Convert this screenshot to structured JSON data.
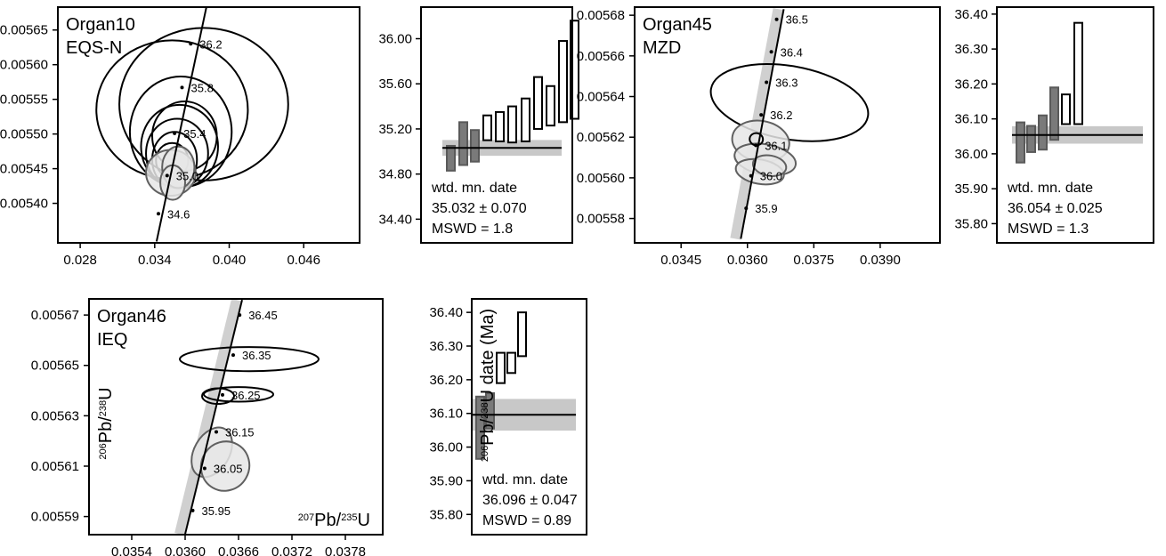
{
  "figure": {
    "axis_labels": {
      "x": "207Pb/235U",
      "y": "206Pb/238U",
      "date": "206Pb/238U date (Ma)"
    },
    "colors": {
      "ellipse_included_fill": "#e6e6e6",
      "ellipse_included_stroke": "#606060",
      "ellipse_excluded_stroke": "#000000",
      "bar_included_fill": "#7a7a7a",
      "bar_excluded_fill": "#ffffff",
      "mean_band": "#c8c8c8",
      "concordia": "#000000"
    }
  },
  "chart_data": [
    {
      "type": "scatter",
      "id": "organ10-concordia",
      "sample": "Organ10",
      "unit": "EQS-N",
      "xlim": [
        0.0262,
        0.0505
      ],
      "ylim": [
        0.005343,
        0.005683
      ],
      "xticks": [
        "0.028",
        "0.034",
        "0.040",
        "0.046"
      ],
      "yticks": [
        "0.00540",
        "0.00545",
        "0.00550",
        "0.00555",
        "0.00560",
        "0.00565"
      ],
      "concordia": {
        "segment": [
          [
            0.03415,
            0.005345
          ],
          [
            0.03815,
            0.005682
          ]
        ],
        "ages": [
          {
            "label": "34.6",
            "x": 0.0343,
            "y": 0.005385
          },
          {
            "label": "35.0",
            "x": 0.035,
            "y": 0.00544
          },
          {
            "label": "35.4",
            "x": 0.0356,
            "y": 0.005501
          },
          {
            "label": "35.8",
            "x": 0.0362,
            "y": 0.005567
          },
          {
            "label": "36.2",
            "x": 0.0369,
            "y": 0.00563
          }
        ]
      },
      "ellipses": [
        {
          "cx": 0.0354,
          "cy": 0.005535,
          "rx": 0.0061,
          "ry": 0.0001,
          "included": false
        },
        {
          "cx": 0.03795,
          "cy": 0.005543,
          "rx": 0.0068,
          "ry": 0.00011,
          "included": false
        },
        {
          "cx": 0.0361,
          "cy": 0.005503,
          "rx": 0.0041,
          "ry": 8e-05,
          "included": false
        },
        {
          "cx": 0.0364,
          "cy": 0.005497,
          "rx": 0.0026,
          "ry": 5e-05,
          "included": false
        },
        {
          "cx": 0.036,
          "cy": 0.005482,
          "rx": 0.0031,
          "ry": 6e-05,
          "included": false
        },
        {
          "cx": 0.0358,
          "cy": 0.005472,
          "rx": 0.0025,
          "ry": 5e-05,
          "included": false
        },
        {
          "cx": 0.0356,
          "cy": 0.005463,
          "rx": 0.0018,
          "ry": 4e-05,
          "included": false
        },
        {
          "cx": 0.0354,
          "cy": 0.005462,
          "rx": 0.0013,
          "ry": 2.5e-05,
          "included": false
        },
        {
          "cx": 0.0353,
          "cy": 0.005444,
          "rx": 0.002,
          "ry": 3.3e-05,
          "included": true
        },
        {
          "cx": 0.0359,
          "cy": 0.005452,
          "rx": 0.0013,
          "ry": 3e-05,
          "included": true
        },
        {
          "cx": 0.03545,
          "cy": 0.00543,
          "rx": 0.001,
          "ry": 2.5e-05,
          "included": true
        }
      ]
    },
    {
      "type": "bar",
      "id": "organ10-dates",
      "ylim": [
        34.19,
        36.28
      ],
      "yticks": [
        "34.40",
        "34.80",
        "35.20",
        "35.60",
        "36.00"
      ],
      "mean": 35.032,
      "mean_err": 0.07,
      "bars": [
        {
          "low": 34.83,
          "high": 35.05,
          "included": true
        },
        {
          "low": 34.88,
          "high": 35.26,
          "included": true
        },
        {
          "low": 34.91,
          "high": 35.19,
          "included": true
        },
        {
          "low": 35.1,
          "high": 35.32,
          "included": false
        },
        {
          "low": 35.09,
          "high": 35.35,
          "included": false
        },
        {
          "low": 35.08,
          "high": 35.4,
          "included": false
        },
        {
          "low": 35.09,
          "high": 35.47,
          "included": false
        },
        {
          "low": 35.2,
          "high": 35.66,
          "included": false
        },
        {
          "low": 35.23,
          "high": 35.58,
          "included": false
        },
        {
          "low": 35.26,
          "high": 35.98,
          "included": false
        },
        {
          "low": 35.29,
          "high": 36.16,
          "included": false
        }
      ],
      "label": "wtd. mn. date",
      "mean_text": "35.032 ± 0.070",
      "mswd_text": "MSWD = 1.8"
    },
    {
      "type": "scatter",
      "id": "organ45-concordia",
      "sample": "Organ45",
      "unit": "MZD",
      "xlim": [
        0.03345,
        0.04035
      ],
      "ylim": [
        0.005568,
        0.005684
      ],
      "xticks": [
        "0.0345",
        "0.0360",
        "0.0375",
        "0.0390"
      ],
      "yticks": [
        "0.00558",
        "0.00560",
        "0.00562",
        "0.00564",
        "0.00566",
        "0.00568"
      ],
      "concordia": {
        "segment": [
          [
            0.03585,
            0.00557
          ],
          [
            0.03682,
            0.005683
          ]
        ],
        "ages": [
          {
            "label": "35.9",
            "x": 0.03597,
            "y": 0.005585
          },
          {
            "label": "36.0",
            "x": 0.03608,
            "y": 0.005601
          },
          {
            "label": "36.1",
            "x": 0.03619,
            "y": 0.005616
          },
          {
            "label": "36.2",
            "x": 0.03631,
            "y": 0.005631
          },
          {
            "label": "36.3",
            "x": 0.03643,
            "y": 0.005647
          },
          {
            "label": "36.4",
            "x": 0.03654,
            "y": 0.005662
          },
          {
            "label": "36.5",
            "x": 0.03666,
            "y": 0.005678
          }
        ]
      },
      "ellipses": [
        {
          "cx": 0.03695,
          "cy": 0.005637,
          "rx": 0.0018,
          "ry": 1.8e-05,
          "included": false
        },
        {
          "cx": 0.0363,
          "cy": 0.005618,
          "rx": 0.00065,
          "ry": 1e-05,
          "included": true
        },
        {
          "cx": 0.0364,
          "cy": 0.005609,
          "rx": 0.0007,
          "ry": 7.5e-06,
          "included": true
        },
        {
          "cx": 0.03628,
          "cy": 0.005603,
          "rx": 0.00055,
          "ry": 6e-06,
          "included": true
        },
        {
          "cx": 0.0365,
          "cy": 0.005606,
          "rx": 0.00038,
          "ry": 5e-06,
          "included": true
        },
        {
          "cx": 0.0362,
          "cy": 0.005619,
          "rx": 0.00015,
          "ry": 3e-06,
          "included": false
        }
      ]
    },
    {
      "type": "bar",
      "id": "organ45-dates",
      "ylim": [
        35.745,
        36.42
      ],
      "yticks": [
        "35.80",
        "35.90",
        "36.00",
        "36.10",
        "36.20",
        "36.30",
        "36.40"
      ],
      "mean": 36.054,
      "mean_err": 0.025,
      "bars": [
        {
          "low": 35.975,
          "high": 36.09,
          "included": true
        },
        {
          "low": 36.005,
          "high": 36.08,
          "included": true
        },
        {
          "low": 36.012,
          "high": 36.11,
          "included": true
        },
        {
          "low": 36.04,
          "high": 36.19,
          "included": true
        },
        {
          "low": 36.085,
          "high": 36.17,
          "included": false
        },
        {
          "low": 36.085,
          "high": 36.375,
          "included": false
        }
      ],
      "label": "wtd. mn. date",
      "mean_text": "36.054 ± 0.025",
      "mswd_text": "MSWD = 1.3"
    },
    {
      "type": "scatter",
      "id": "organ46-concordia",
      "sample": "Organ46",
      "unit": "IEQ",
      "xlim": [
        0.03492,
        0.03822
      ],
      "ylim": [
        0.0055828,
        0.0056764
      ],
      "xticks": [
        "0.0354",
        "0.0360",
        "0.0366",
        "0.0372",
        "0.0378"
      ],
      "yticks": [
        "0.00559",
        "0.00561",
        "0.00563",
        "0.00565",
        "0.00567"
      ],
      "concordia": {
        "segment": [
          [
            0.036,
            0.005583
          ],
          [
            0.03664,
            0.005676
          ]
        ],
        "ages": [
          {
            "label": "35.95",
            "x": 0.036085,
            "y": 0.0055924
          },
          {
            "label": "36.05",
            "x": 0.036219,
            "y": 0.0056091
          },
          {
            "label": "36.15",
            "x": 0.03635,
            "y": 0.0056236
          },
          {
            "label": "36.25",
            "x": 0.03642,
            "y": 0.0056383
          },
          {
            "label": "36.35",
            "x": 0.03654,
            "y": 0.0056541
          },
          {
            "label": "36.45",
            "x": 0.036612,
            "y": 0.00567
          }
        ]
      },
      "ellipses": [
        {
          "cx": 0.03672,
          "cy": 0.0056525,
          "rx": 0.00078,
          "ry": 4.8e-06,
          "included": false
        },
        {
          "cx": 0.0366,
          "cy": 0.0056385,
          "rx": 0.00039,
          "ry": 2.9e-06,
          "included": false
        },
        {
          "cx": 0.03637,
          "cy": 0.0056378,
          "rx": 0.00018,
          "ry": 3.1e-06,
          "included": false
        },
        {
          "cx": 0.0363,
          "cy": 0.0056155,
          "rx": 0.0003,
          "ry": 7e-06,
          "included": true
        },
        {
          "cx": 0.03645,
          "cy": 0.00561,
          "rx": 0.00028,
          "ry": 9.5e-06,
          "included": true
        }
      ]
    },
    {
      "type": "bar",
      "id": "organ46-dates",
      "ylim": [
        35.74,
        36.44
      ],
      "yticks": [
        "35.80",
        "35.90",
        "36.00",
        "36.10",
        "36.20",
        "36.30",
        "36.40"
      ],
      "mean": 36.096,
      "mean_err": 0.047,
      "bars": [
        {
          "low": 35.965,
          "high": 36.15,
          "included": true
        },
        {
          "low": 36.055,
          "high": 36.16,
          "included": true
        },
        {
          "low": 36.19,
          "high": 36.28,
          "included": false
        },
        {
          "low": 36.22,
          "high": 36.28,
          "included": false
        },
        {
          "low": 36.27,
          "high": 36.4,
          "included": false
        }
      ],
      "label": "wtd. mn. date",
      "mean_text": "36.096 ± 0.047",
      "mswd_text": "MSWD = 0.89"
    }
  ]
}
